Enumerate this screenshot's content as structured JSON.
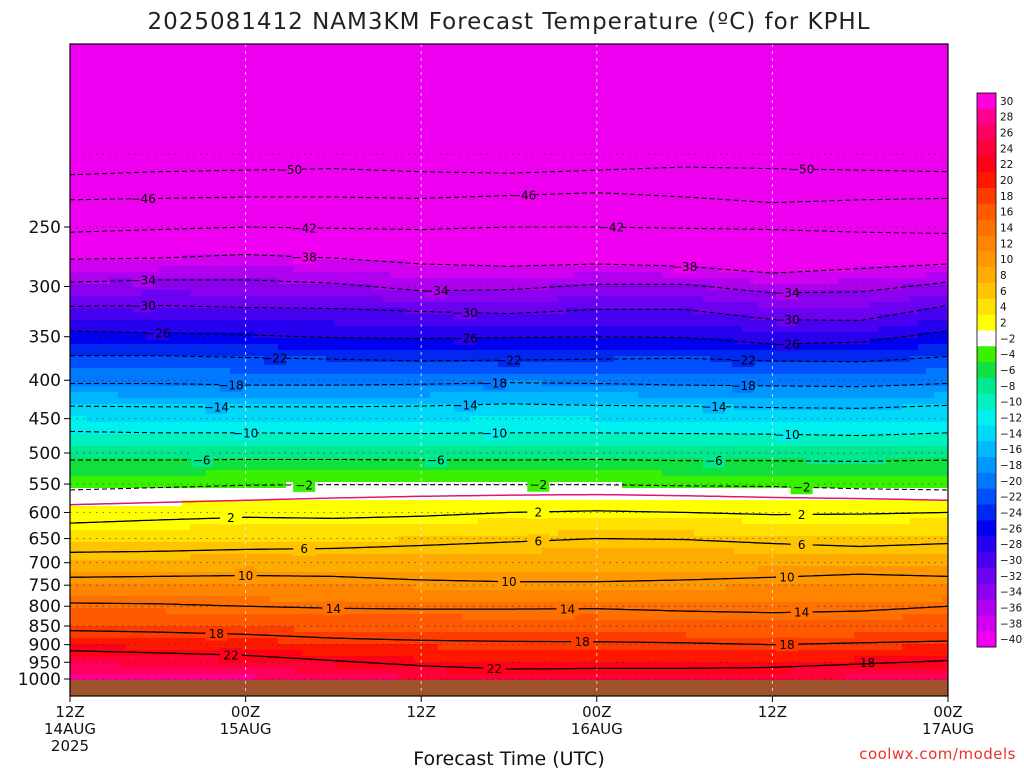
{
  "chart_data": {
    "type": "heatmap",
    "title": "2025081412 NAM3KM Forecast Temperature (ºC) for KPHL",
    "xlabel": "Forecast Time (UTC)",
    "ylabel": "",
    "x_ticks": [
      {
        "hour": 0,
        "line1": "12Z",
        "line2": "14AUG",
        "line3": "2025"
      },
      {
        "hour": 12,
        "line1": "00Z",
        "line2": "15AUG",
        "line3": ""
      },
      {
        "hour": 24,
        "line1": "12Z",
        "line2": "",
        "line3": ""
      },
      {
        "hour": 36,
        "line1": "00Z",
        "line2": "16AUG",
        "line3": ""
      },
      {
        "hour": 48,
        "line1": "12Z",
        "line2": "",
        "line3": ""
      },
      {
        "hour": 60,
        "line1": "00Z",
        "line2": "17AUG",
        "line3": ""
      }
    ],
    "x_range": [
      0,
      60
    ],
    "y_ticks": [
      "250",
      "300",
      "350",
      "400",
      "450",
      "500",
      "550",
      "600",
      "650",
      "700",
      "750",
      "800",
      "850",
      "900",
      "950",
      "1000"
    ],
    "y_scale": "log-pressure",
    "y_range": [
      1000,
      200
    ],
    "credit": "coolwx.com/models",
    "colorbar": {
      "labels": [
        "30",
        "28",
        "26",
        "24",
        "22",
        "20",
        "18",
        "16",
        "14",
        "12",
        "10",
        "8",
        "6",
        "4",
        "2",
        "-2",
        "-4",
        "-6",
        "-8",
        "-10",
        "-12",
        "-14",
        "-16",
        "-18",
        "-20",
        "-22",
        "-24",
        "-26",
        "-28",
        "-30",
        "-32",
        "-34",
        "-36",
        "-38",
        "-40"
      ],
      "colors": [
        "#ff00e0",
        "#ff0090",
        "#ff0060",
        "#ff0038",
        "#ff0018",
        "#ff1800",
        "#ff3c00",
        "#ff5a00",
        "#ff7000",
        "#ff8400",
        "#ff9800",
        "#ffac00",
        "#ffc400",
        "#ffe000",
        "#ffff00",
        "#ffffff",
        "#38f000",
        "#10e040",
        "#00e890",
        "#00f0c0",
        "#00f0f0",
        "#00d8f8",
        "#00b8ff",
        "#0098ff",
        "#0078ff",
        "#0050ff",
        "#0028f0",
        "#0000f0",
        "#2800f0",
        "#4800f0",
        "#6c00f0",
        "#8c00f0",
        "#b000f0",
        "#d000f0",
        "#f000f0"
      ]
    },
    "series": [
      {
        "value": -50,
        "pressure": [
          213,
          211,
          210,
          209,
          211,
          212,
          210,
          208,
          209,
          210,
          211
        ],
        "label_hours": [
          15,
          50
        ]
      },
      {
        "value": -46,
        "pressure": [
          230,
          229,
          228,
          228,
          229,
          227,
          225,
          228,
          232,
          230,
          229
        ],
        "label_hours": [
          5,
          31
        ]
      },
      {
        "value": -42,
        "pressure": [
          254,
          252,
          250,
          251,
          252,
          250,
          250,
          251,
          252,
          254,
          255
        ],
        "label_hours": [
          16,
          37
        ]
      },
      {
        "value": -38,
        "pressure": [
          276,
          275,
          272,
          275,
          280,
          282,
          280,
          282,
          288,
          284,
          280
        ],
        "label_hours": [
          16,
          42
        ]
      },
      {
        "value": -34,
        "pressure": [
          296,
          294,
          294,
          297,
          304,
          303,
          298,
          298,
          306,
          305,
          296
        ],
        "label_hours": [
          5,
          25,
          49
        ]
      },
      {
        "value": -30,
        "pressure": [
          319,
          318,
          320,
          321,
          324,
          326,
          322,
          322,
          332,
          333,
          318
        ],
        "label_hours": [
          5,
          27,
          49
        ]
      },
      {
        "value": -26,
        "pressure": [
          344,
          346,
          348,
          351,
          352,
          351,
          350,
          351,
          358,
          356,
          344
        ],
        "label_hours": [
          6,
          27,
          49
        ]
      },
      {
        "value": -22,
        "pressure": [
          371,
          371,
          373,
          375,
          377,
          376,
          375,
          374,
          377,
          378,
          372
        ],
        "label_hours": [
          14,
          30,
          46
        ]
      },
      {
        "value": -18,
        "pressure": [
          404,
          404,
          406,
          406,
          405,
          403,
          404,
          406,
          407,
          408,
          404
        ],
        "label_hours": [
          11,
          29,
          46
        ]
      },
      {
        "value": -14,
        "pressure": [
          433,
          434,
          434,
          434,
          433,
          430,
          432,
          433,
          435,
          436,
          432
        ],
        "label_hours": [
          10,
          27,
          44
        ]
      },
      {
        "value": -10,
        "pressure": [
          468,
          470,
          470,
          471,
          471,
          470,
          470,
          471,
          472,
          474,
          470
        ],
        "label_hours": [
          12,
          29,
          49
        ]
      },
      {
        "value": -6,
        "pressure": [
          511,
          511,
          510,
          510,
          511,
          511,
          510,
          512,
          512,
          513,
          511
        ],
        "label_hours": [
          9,
          25,
          44
        ]
      },
      {
        "value": -2,
        "pressure": [
          560,
          556,
          552,
          551,
          551,
          551,
          551,
          553,
          554,
          558,
          560
        ],
        "label_hours": [
          16,
          32,
          50
        ]
      },
      {
        "value": 2,
        "pressure": [
          620,
          614,
          609,
          611,
          607,
          600,
          597,
          600,
          604,
          603,
          600
        ],
        "label_hours": [
          11,
          32,
          50
        ]
      },
      {
        "value": 6,
        "pressure": [
          678,
          676,
          672,
          670,
          664,
          657,
          650,
          652,
          660,
          666,
          660
        ],
        "label_hours": [
          16,
          32,
          50
        ]
      },
      {
        "value": 10,
        "pressure": [
          732,
          730,
          728,
          730,
          738,
          742,
          742,
          738,
          732,
          725,
          730
        ],
        "label_hours": [
          12,
          30,
          49
        ]
      },
      {
        "value": 14,
        "pressure": [
          792,
          794,
          800,
          805,
          807,
          807,
          806,
          812,
          816,
          812,
          800
        ],
        "label_hours": [
          18,
          34,
          50
        ]
      },
      {
        "value": 18,
        "pressure": [
          862,
          866,
          872,
          882,
          888,
          891,
          892,
          895,
          900,
          895,
          890
        ],
        "label_hours": [
          10,
          35,
          49
        ]
      },
      {
        "value": 22,
        "pressure": [
          917,
          923,
          930,
          945,
          960,
          970,
          968,
          968,
          965,
          955,
          945
        ],
        "label_hours": [
          11,
          29
        ]
      }
    ],
    "freezing_line_pressure": [
      586,
      582,
      578,
      574,
      571,
      569,
      568,
      570,
      573,
      575,
      578
    ],
    "annotations": [
      "18"
    ],
    "grid": true
  }
}
